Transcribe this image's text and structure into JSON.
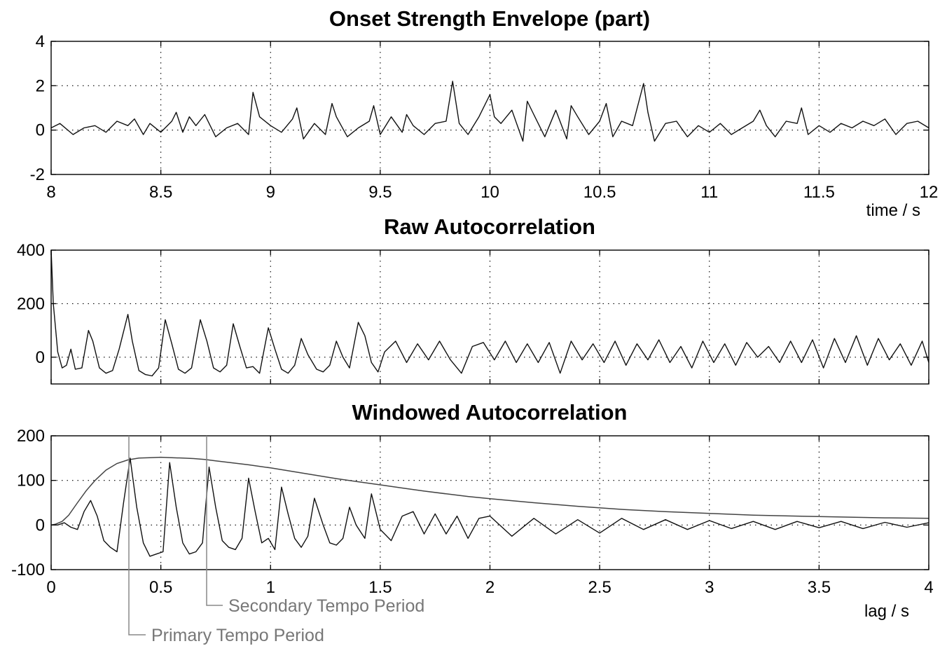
{
  "chart_data": [
    {
      "type": "line",
      "title": "Onset Strength Envelope (part)",
      "xlabel": "time / s",
      "ylabel": "",
      "xlim": [
        8,
        12
      ],
      "ylim": [
        -2,
        4
      ],
      "xticks": [
        8,
        8.5,
        9,
        9.5,
        10,
        10.5,
        11,
        11.5,
        12
      ],
      "xtick_labels": [
        "8",
        "8.5",
        "9",
        "9.5",
        "10",
        "10.5",
        "11",
        "11.5",
        "12"
      ],
      "yticks": [
        -2,
        0,
        2,
        4
      ],
      "ytick_labels": [
        "-2",
        "0",
        "2",
        "4"
      ],
      "grid": true,
      "series": [
        {
          "x": [
            8.0,
            8.04,
            8.1,
            8.15,
            8.2,
            8.25,
            8.3,
            8.35,
            8.38,
            8.42,
            8.45,
            8.5,
            8.55,
            8.57,
            8.6,
            8.63,
            8.66,
            8.7,
            8.75,
            8.8,
            8.85,
            8.9,
            8.92,
            8.95,
            9.0,
            9.05,
            9.1,
            9.12,
            9.15,
            9.2,
            9.25,
            9.28,
            9.3,
            9.35,
            9.4,
            9.45,
            9.47,
            9.5,
            9.55,
            9.6,
            9.62,
            9.65,
            9.7,
            9.75,
            9.8,
            9.83,
            9.86,
            9.9,
            9.95,
            10.0,
            10.02,
            10.05,
            10.1,
            10.15,
            10.17,
            10.2,
            10.25,
            10.3,
            10.35,
            10.37,
            10.4,
            10.45,
            10.5,
            10.53,
            10.56,
            10.6,
            10.65,
            10.7,
            10.72,
            10.75,
            10.8,
            10.85,
            10.9,
            10.95,
            11.0,
            11.05,
            11.1,
            11.15,
            11.2,
            11.23,
            11.26,
            11.3,
            11.35,
            11.4,
            11.42,
            11.45,
            11.5,
            11.55,
            11.6,
            11.65,
            11.7,
            11.75,
            11.8,
            11.85,
            11.9,
            11.95,
            12.0
          ],
          "y": [
            0.1,
            0.3,
            -0.2,
            0.1,
            0.2,
            -0.1,
            0.4,
            0.2,
            0.5,
            -0.2,
            0.3,
            -0.1,
            0.4,
            0.8,
            -0.1,
            0.6,
            0.2,
            0.7,
            -0.3,
            0.1,
            0.3,
            -0.2,
            1.7,
            0.6,
            0.2,
            -0.1,
            0.5,
            1.0,
            -0.4,
            0.3,
            -0.2,
            1.2,
            0.6,
            -0.3,
            0.1,
            0.4,
            1.1,
            -0.2,
            0.6,
            -0.1,
            0.7,
            0.2,
            -0.2,
            0.3,
            0.4,
            2.2,
            0.3,
            -0.2,
            0.6,
            1.6,
            0.6,
            0.3,
            0.9,
            -0.5,
            1.3,
            0.7,
            -0.3,
            0.9,
            -0.4,
            1.1,
            0.6,
            -0.2,
            0.4,
            1.2,
            -0.3,
            0.4,
            0.2,
            2.1,
            0.8,
            -0.5,
            0.3,
            0.4,
            -0.3,
            0.2,
            -0.1,
            0.3,
            -0.2,
            0.1,
            0.4,
            0.9,
            0.2,
            -0.3,
            0.4,
            0.3,
            1.0,
            -0.2,
            0.2,
            -0.1,
            0.3,
            0.1,
            0.4,
            0.2,
            0.5,
            -0.2,
            0.3,
            0.4,
            0.1
          ]
        }
      ]
    },
    {
      "type": "line",
      "title": "Raw Autocorrelation",
      "xlabel": "",
      "ylabel": "",
      "xlim": [
        0,
        4
      ],
      "ylim": [
        -100,
        400
      ],
      "xticks": [
        0,
        0.5,
        1,
        1.5,
        2,
        2.5,
        3,
        3.5,
        4
      ],
      "yticks": [
        0,
        200,
        400
      ],
      "ytick_labels": [
        "0",
        "200",
        "400"
      ],
      "grid": true,
      "series": [
        {
          "x": [
            0.0,
            0.01,
            0.03,
            0.05,
            0.07,
            0.09,
            0.11,
            0.14,
            0.17,
            0.19,
            0.22,
            0.25,
            0.28,
            0.31,
            0.35,
            0.37,
            0.4,
            0.43,
            0.46,
            0.49,
            0.52,
            0.55,
            0.58,
            0.61,
            0.64,
            0.68,
            0.71,
            0.74,
            0.77,
            0.8,
            0.83,
            0.86,
            0.89,
            0.92,
            0.95,
            0.99,
            1.02,
            1.05,
            1.08,
            1.11,
            1.14,
            1.17,
            1.21,
            1.24,
            1.27,
            1.3,
            1.33,
            1.36,
            1.4,
            1.43,
            1.46,
            1.49,
            1.52,
            1.57,
            1.62,
            1.67,
            1.72,
            1.77,
            1.82,
            1.87,
            1.92,
            1.97,
            2.02,
            2.07,
            2.12,
            2.17,
            2.22,
            2.27,
            2.32,
            2.37,
            2.42,
            2.47,
            2.52,
            2.57,
            2.62,
            2.67,
            2.72,
            2.77,
            2.82,
            2.87,
            2.92,
            2.97,
            3.02,
            3.07,
            3.12,
            3.17,
            3.22,
            3.27,
            3.32,
            3.37,
            3.42,
            3.47,
            3.52,
            3.57,
            3.62,
            3.67,
            3.72,
            3.77,
            3.82,
            3.87,
            3.92,
            3.97,
            4.0
          ],
          "y": [
            400,
            200,
            20,
            -40,
            -30,
            30,
            -45,
            -40,
            100,
            60,
            -40,
            -60,
            -50,
            30,
            160,
            60,
            -50,
            -65,
            -70,
            -40,
            140,
            50,
            -45,
            -60,
            -40,
            140,
            60,
            -40,
            -55,
            -30,
            125,
            40,
            -40,
            -35,
            -60,
            110,
            30,
            -45,
            -60,
            -30,
            70,
            10,
            -45,
            -55,
            -30,
            60,
            0,
            -40,
            130,
            80,
            -20,
            -55,
            20,
            60,
            -20,
            50,
            -10,
            60,
            -10,
            -60,
            40,
            55,
            -10,
            60,
            -20,
            50,
            -20,
            55,
            -60,
            60,
            -10,
            50,
            -20,
            60,
            -30,
            50,
            -10,
            65,
            -20,
            40,
            -40,
            60,
            -20,
            50,
            -30,
            55,
            0,
            40,
            -20,
            60,
            -20,
            65,
            -40,
            70,
            -20,
            80,
            -30,
            70,
            -10,
            50,
            -30,
            60,
            -20
          ]
        }
      ]
    },
    {
      "type": "line",
      "title": "Windowed Autocorrelation",
      "xlabel": "lag / s",
      "ylabel": "",
      "xlim": [
        0,
        4
      ],
      "ylim": [
        -100,
        200
      ],
      "xticks": [
        0,
        0.5,
        1,
        1.5,
        2,
        2.5,
        3,
        3.5,
        4
      ],
      "xtick_labels": [
        "0",
        "0.5",
        "1",
        "1.5",
        "2",
        "2.5",
        "3",
        "3.5",
        "4"
      ],
      "yticks": [
        -100,
        0,
        100,
        200
      ],
      "ytick_labels": [
        "-100",
        "0",
        "100",
        "200"
      ],
      "grid": true,
      "series": [
        {
          "x": [
            0.0,
            0.03,
            0.06,
            0.09,
            0.12,
            0.15,
            0.18,
            0.21,
            0.24,
            0.27,
            0.3,
            0.33,
            0.36,
            0.39,
            0.42,
            0.45,
            0.48,
            0.51,
            0.54,
            0.57,
            0.6,
            0.63,
            0.66,
            0.69,
            0.72,
            0.75,
            0.78,
            0.81,
            0.84,
            0.87,
            0.9,
            0.93,
            0.96,
            0.99,
            1.02,
            1.05,
            1.08,
            1.11,
            1.14,
            1.17,
            1.2,
            1.24,
            1.27,
            1.3,
            1.33,
            1.36,
            1.39,
            1.43,
            1.46,
            1.5,
            1.55,
            1.6,
            1.65,
            1.7,
            1.75,
            1.8,
            1.85,
            1.9,
            1.95,
            2.0,
            2.1,
            2.2,
            2.3,
            2.4,
            2.5,
            2.6,
            2.7,
            2.8,
            2.9,
            3.0,
            3.1,
            3.2,
            3.3,
            3.4,
            3.5,
            3.6,
            3.7,
            3.8,
            3.9,
            4.0
          ],
          "y": [
            0,
            0,
            5,
            -5,
            -10,
            30,
            55,
            20,
            -35,
            -50,
            -60,
            50,
            150,
            40,
            -40,
            -70,
            -65,
            -60,
            140,
            40,
            -40,
            -65,
            -60,
            -40,
            130,
            40,
            -35,
            -50,
            -55,
            -30,
            105,
            30,
            -40,
            -30,
            -55,
            85,
            25,
            -30,
            -50,
            -25,
            60,
            0,
            -40,
            -45,
            -30,
            40,
            0,
            -30,
            70,
            -10,
            -35,
            20,
            30,
            -20,
            25,
            -20,
            20,
            -30,
            15,
            20,
            -25,
            15,
            -20,
            12,
            -18,
            15,
            -10,
            12,
            -10,
            10,
            -8,
            8,
            -10,
            8,
            -6,
            8,
            -8,
            6,
            -5,
            5
          ]
        },
        {
          "x": [
            0.0,
            0.02,
            0.05,
            0.08,
            0.12,
            0.16,
            0.2,
            0.25,
            0.3,
            0.35,
            0.4,
            0.45,
            0.5,
            0.55,
            0.6,
            0.65,
            0.7,
            0.75,
            0.8,
            0.9,
            1.0,
            1.1,
            1.2,
            1.3,
            1.4,
            1.5,
            1.6,
            1.7,
            1.8,
            1.9,
            2.0,
            2.2,
            2.4,
            2.6,
            2.8,
            3.0,
            3.2,
            3.4,
            3.6,
            3.8,
            4.0
          ],
          "y": [
            0,
            2,
            8,
            22,
            50,
            77,
            100,
            123,
            138,
            146,
            150,
            151,
            152,
            151,
            150,
            149,
            147,
            144,
            141,
            135,
            128,
            120,
            112,
            104,
            97,
            90,
            83,
            76,
            70,
            64,
            59,
            50,
            42,
            35,
            30,
            26,
            22,
            20,
            18,
            16,
            15
          ]
        }
      ],
      "annotations": [
        "Secondary Tempo Period",
        "Primary Tempo Period"
      ]
    }
  ]
}
